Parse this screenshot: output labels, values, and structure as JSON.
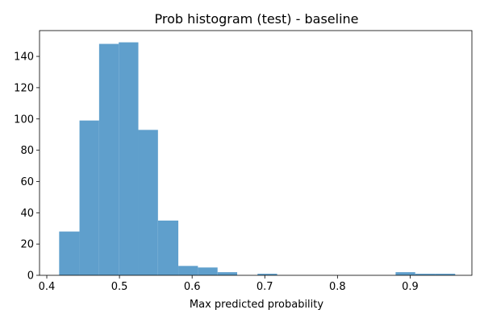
{
  "chart_data": {
    "type": "bar",
    "title": "Prob histogram (test) - baseline",
    "xlabel": "Max predicted probability",
    "ylabel": "",
    "xlim": [
      0.39,
      0.985
    ],
    "ylim": [
      0,
      156.5
    ],
    "xticks": [
      0.4,
      0.5,
      0.6,
      0.7,
      0.8,
      0.9
    ],
    "xtick_labels": [
      "0.4",
      "0.5",
      "0.6",
      "0.7",
      "0.8",
      "0.9"
    ],
    "yticks": [
      0,
      20,
      40,
      60,
      80,
      100,
      120,
      140
    ],
    "ytick_labels": [
      "0",
      "20",
      "40",
      "60",
      "80",
      "100",
      "120",
      "140"
    ],
    "grid": false,
    "bar_color": "#5f9fcc",
    "bins": [
      {
        "x0": 0.417,
        "x1": 0.445,
        "count": 28
      },
      {
        "x0": 0.445,
        "x1": 0.472,
        "count": 99
      },
      {
        "x0": 0.472,
        "x1": 0.499,
        "count": 148
      },
      {
        "x0": 0.499,
        "x1": 0.526,
        "count": 149
      },
      {
        "x0": 0.526,
        "x1": 0.553,
        "count": 93
      },
      {
        "x0": 0.553,
        "x1": 0.581,
        "count": 35
      },
      {
        "x0": 0.581,
        "x1": 0.608,
        "count": 6
      },
      {
        "x0": 0.608,
        "x1": 0.635,
        "count": 5
      },
      {
        "x0": 0.635,
        "x1": 0.662,
        "count": 2
      },
      {
        "x0": 0.662,
        "x1": 0.69,
        "count": 0
      },
      {
        "x0": 0.69,
        "x1": 0.717,
        "count": 1
      },
      {
        "x0": 0.717,
        "x1": 0.744,
        "count": 0
      },
      {
        "x0": 0.744,
        "x1": 0.771,
        "count": 0
      },
      {
        "x0": 0.771,
        "x1": 0.798,
        "count": 0
      },
      {
        "x0": 0.798,
        "x1": 0.826,
        "count": 0
      },
      {
        "x0": 0.826,
        "x1": 0.853,
        "count": 0
      },
      {
        "x0": 0.853,
        "x1": 0.88,
        "count": 0
      },
      {
        "x0": 0.88,
        "x1": 0.907,
        "count": 2
      },
      {
        "x0": 0.907,
        "x1": 0.934,
        "count": 1
      },
      {
        "x0": 0.934,
        "x1": 0.962,
        "count": 1
      }
    ]
  }
}
